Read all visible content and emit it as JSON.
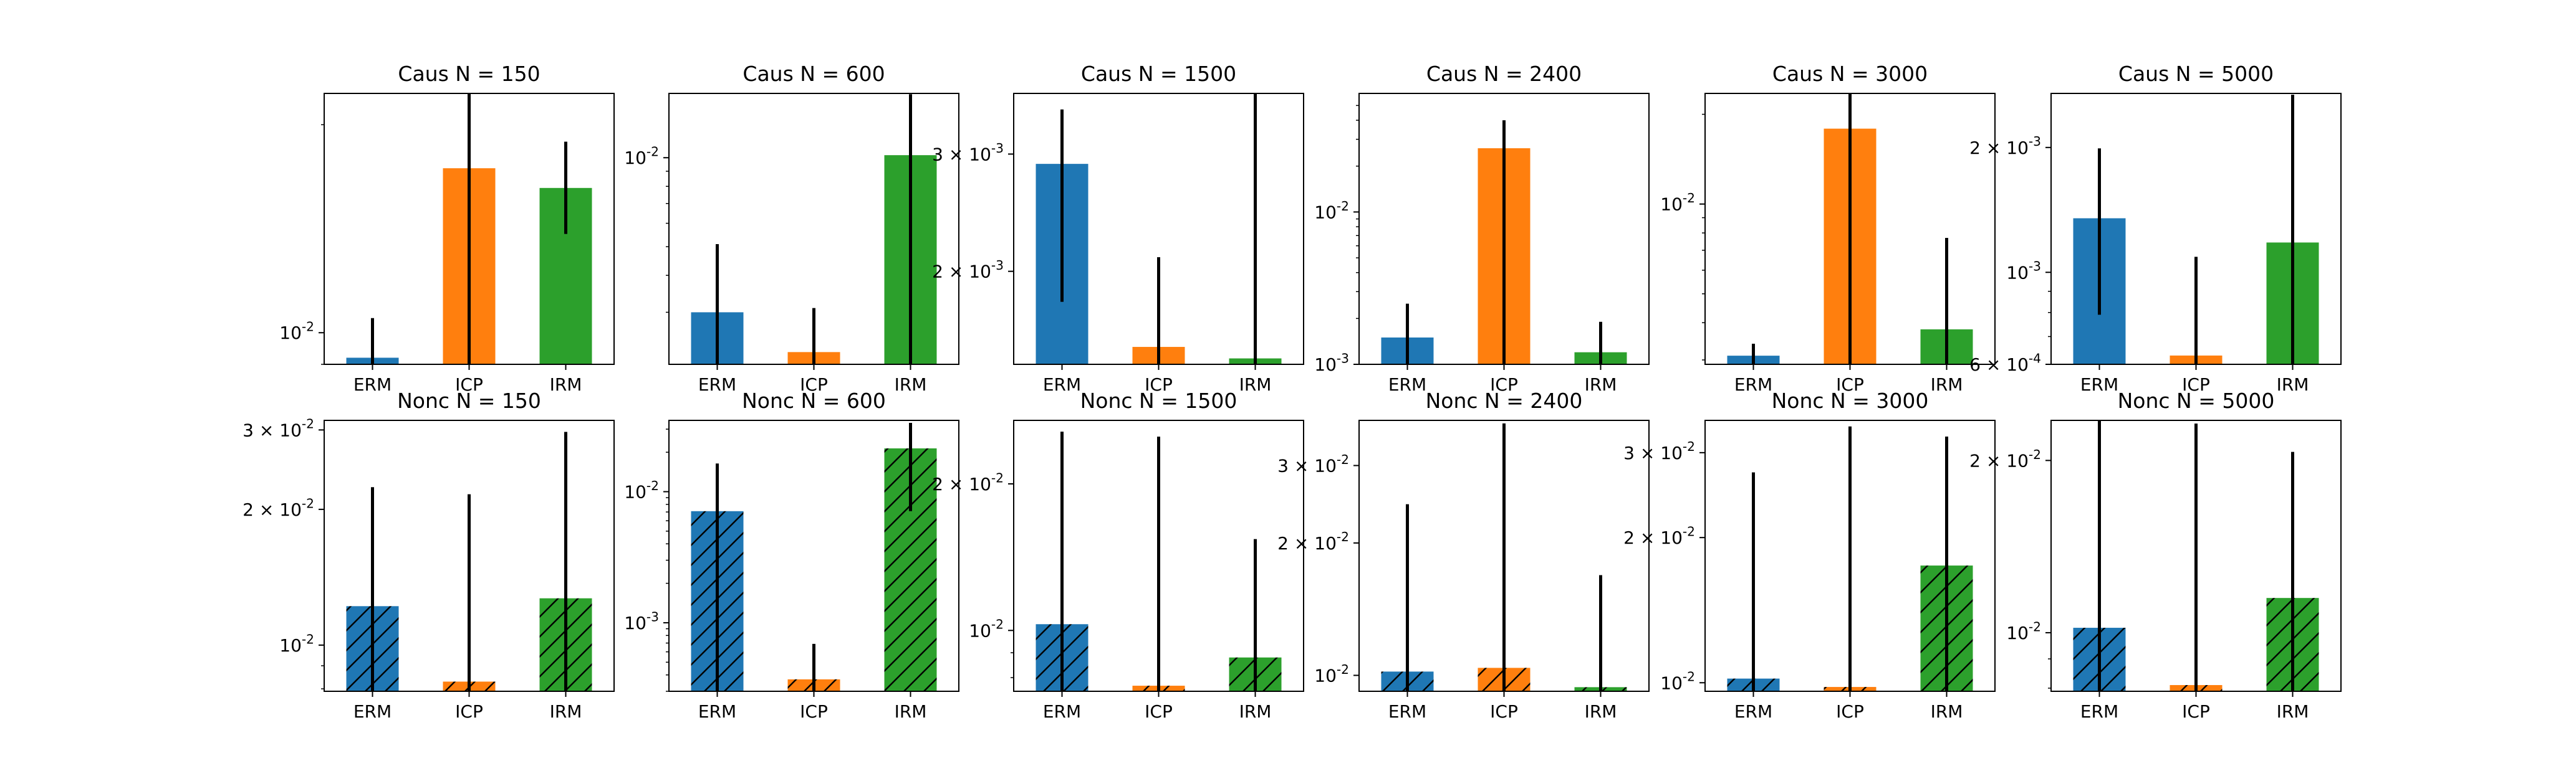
{
  "chart_data": [
    {
      "type": "bar",
      "title": "Caus N = 150",
      "categories": [
        "ERM",
        "ICP",
        "IRM"
      ],
      "values": [
        0.0092,
        0.0173,
        0.0162
      ],
      "errors": [
        [
          0.0085,
          0.0105
        ],
        [
          0.0085,
          0.0222
        ],
        [
          0.0139,
          0.0189
        ]
      ],
      "yscale": "log",
      "ylim": [
        0.009,
        0.0222
      ],
      "ticks": [
        {
          "value": 0.01,
          "label": "10^{-2}"
        }
      ],
      "hatched": false
    },
    {
      "type": "bar",
      "title": "Caus N = 600",
      "categories": [
        "ERM",
        "ICP",
        "IRM"
      ],
      "values": [
        0.003,
        0.0022,
        0.0102
      ],
      "errors": [
        [
          0.0015,
          0.0051
        ],
        [
          0.0015,
          0.0031
        ],
        [
          0.0015,
          0.0164
        ]
      ],
      "yscale": "log",
      "ylim": [
        0.002,
        0.0165
      ],
      "ticks": [
        {
          "value": 0.01,
          "label": "10^{-2}"
        }
      ],
      "hatched": false
    },
    {
      "type": "bar",
      "title": "Caus N = 1500",
      "categories": [
        "ERM",
        "ICP",
        "IRM"
      ],
      "values": [
        0.0029,
        0.00154,
        0.00148
      ],
      "errors": [
        [
          0.0018,
          0.0035
        ],
        [
          0.0013,
          0.0021
        ],
        [
          0.0013,
          0.0037
        ]
      ],
      "yscale": "log",
      "ylim": [
        0.00145,
        0.0037
      ],
      "ticks": [
        {
          "value": 0.003,
          "label": "3 × 10^{-3}"
        },
        {
          "value": 0.002,
          "label": "2 × 10^{-3}"
        }
      ],
      "hatched": false
    },
    {
      "type": "bar",
      "title": "Caus N = 2400",
      "categories": [
        "ERM",
        "ICP",
        "IRM"
      ],
      "values": [
        0.0015,
        0.0262,
        0.0012
      ],
      "errors": [
        [
          0.0008,
          0.0025
        ],
        [
          0.0008,
          0.04
        ],
        [
          0.0008,
          0.0019
        ]
      ],
      "yscale": "log",
      "ylim": [
        0.001,
        0.06
      ],
      "ticks": [
        {
          "value": 0.01,
          "label": "10^{-2}"
        },
        {
          "value": 0.001,
          "label": "10^{-3}"
        }
      ],
      "hatched": false
    },
    {
      "type": "bar",
      "title": "Caus N = 3000",
      "categories": [
        "ERM",
        "ICP",
        "IRM"
      ],
      "values": [
        0.0031,
        0.0179,
        0.0038
      ],
      "errors": [
        [
          0.0015,
          0.0034
        ],
        [
          0.0015,
          0.0235
        ],
        [
          0.0015,
          0.0077
        ]
      ],
      "yscale": "log",
      "ylim": [
        0.0029,
        0.0235
      ],
      "ticks": [
        {
          "value": 0.01,
          "label": "10^{-2}"
        }
      ],
      "hatched": false
    },
    {
      "type": "bar",
      "title": "Caus N = 5000",
      "categories": [
        "ERM",
        "ICP",
        "IRM"
      ],
      "values": [
        0.00135,
        0.00063,
        0.00118
      ],
      "errors": [
        [
          0.00079,
          0.00199
        ],
        [
          0.0005,
          0.00109
        ],
        [
          0.0005,
          0.00268
        ]
      ],
      "yscale": "log",
      "ylim": [
        0.0006,
        0.0027
      ],
      "ticks": [
        {
          "value": 0.002,
          "label": "2 × 10^{-3}"
        },
        {
          "value": 0.001,
          "label": "10^{-3}"
        },
        {
          "value": 0.0006,
          "label": "6 × 10^{-4}"
        }
      ],
      "hatched": false
    },
    {
      "type": "bar",
      "title": "Nonc N = 150",
      "categories": [
        "ERM",
        "ICP",
        "IRM"
      ],
      "values": [
        0.0122,
        0.0083,
        0.0127
      ],
      "errors": [
        [
          0.005,
          0.0224
        ],
        [
          0.005,
          0.0216
        ],
        [
          0.005,
          0.0297
        ]
      ],
      "yscale": "log",
      "ylim": [
        0.0079,
        0.0315
      ],
      "ticks": [
        {
          "value": 0.03,
          "label": "3 × 10^{-2}"
        },
        {
          "value": 0.02,
          "label": "2 × 10^{-2}"
        },
        {
          "value": 0.01,
          "label": "10^{-2}"
        }
      ],
      "hatched": true
    },
    {
      "type": "bar",
      "title": "Nonc N = 600",
      "categories": [
        "ERM",
        "ICP",
        "IRM"
      ],
      "values": [
        0.0071,
        0.00037,
        0.0214
      ],
      "errors": [
        [
          0.0002,
          0.0164
        ],
        [
          0.0002,
          0.00069
        ],
        [
          0.0071,
          0.0335
        ]
      ],
      "yscale": "log",
      "ylim": [
        0.0003,
        0.035
      ],
      "ticks": [
        {
          "value": 0.01,
          "label": "10^{-2}"
        },
        {
          "value": 0.001,
          "label": "10^{-3}"
        }
      ],
      "hatched": true
    },
    {
      "type": "bar",
      "title": "Nonc N = 1500",
      "categories": [
        "ERM",
        "ICP",
        "IRM"
      ],
      "values": [
        0.0103,
        0.0077,
        0.0088
      ],
      "errors": [
        [
          0.005,
          0.0256
        ],
        [
          0.005,
          0.025
        ],
        [
          0.005,
          0.0154
        ]
      ],
      "yscale": "log",
      "ylim": [
        0.0075,
        0.027
      ],
      "ticks": [
        {
          "value": 0.02,
          "label": "2 × 10^{-2}"
        },
        {
          "value": 0.01,
          "label": "10^{-2}"
        }
      ],
      "hatched": true
    },
    {
      "type": "bar",
      "title": "Nonc N = 2400",
      "categories": [
        "ERM",
        "ICP",
        "IRM"
      ],
      "values": [
        0.0102,
        0.0104,
        0.0094
      ],
      "errors": [
        [
          0.005,
          0.0245
        ],
        [
          0.005,
          0.0374
        ],
        [
          0.005,
          0.0169
        ]
      ],
      "yscale": "log",
      "ylim": [
        0.0092,
        0.038
      ],
      "ticks": [
        {
          "value": 0.03,
          "label": "3 × 10^{-2}"
        },
        {
          "value": 0.02,
          "label": "2 × 10^{-2}"
        },
        {
          "value": 0.01,
          "label": "10^{-2}"
        }
      ],
      "hatched": true
    },
    {
      "type": "bar",
      "title": "Nonc N = 3000",
      "categories": [
        "ERM",
        "ICP",
        "IRM"
      ],
      "values": [
        0.0102,
        0.0098,
        0.0175
      ],
      "errors": [
        [
          0.005,
          0.0273
        ],
        [
          0.005,
          0.034
        ],
        [
          0.005,
          0.0324
        ]
      ],
      "yscale": "log",
      "ylim": [
        0.0096,
        0.035
      ],
      "ticks": [
        {
          "value": 0.03,
          "label": "3 × 10^{-2}"
        },
        {
          "value": 0.02,
          "label": "2 × 10^{-2}"
        },
        {
          "value": 0.01,
          "label": "10^{-2}"
        }
      ],
      "hatched": true
    },
    {
      "type": "bar",
      "title": "Nonc N = 5000",
      "categories": [
        "ERM",
        "ICP",
        "IRM"
      ],
      "values": [
        0.0102,
        0.0081,
        0.0115
      ],
      "errors": [
        [
          0.005,
          0.0235
        ],
        [
          0.005,
          0.0232
        ],
        [
          0.005,
          0.0207
        ]
      ],
      "yscale": "log",
      "ylim": [
        0.0079,
        0.0235
      ],
      "ticks": [
        {
          "value": 0.02,
          "label": "2 × 10^{-2}"
        },
        {
          "value": 0.01,
          "label": "10^{-2}"
        }
      ],
      "hatched": true
    }
  ],
  "colors": {
    "ERM": "#1f77b4",
    "ICP": "#ff7f0e",
    "IRM": "#2ca02c",
    "error_bar": "#000000",
    "axes": "#000000"
  }
}
